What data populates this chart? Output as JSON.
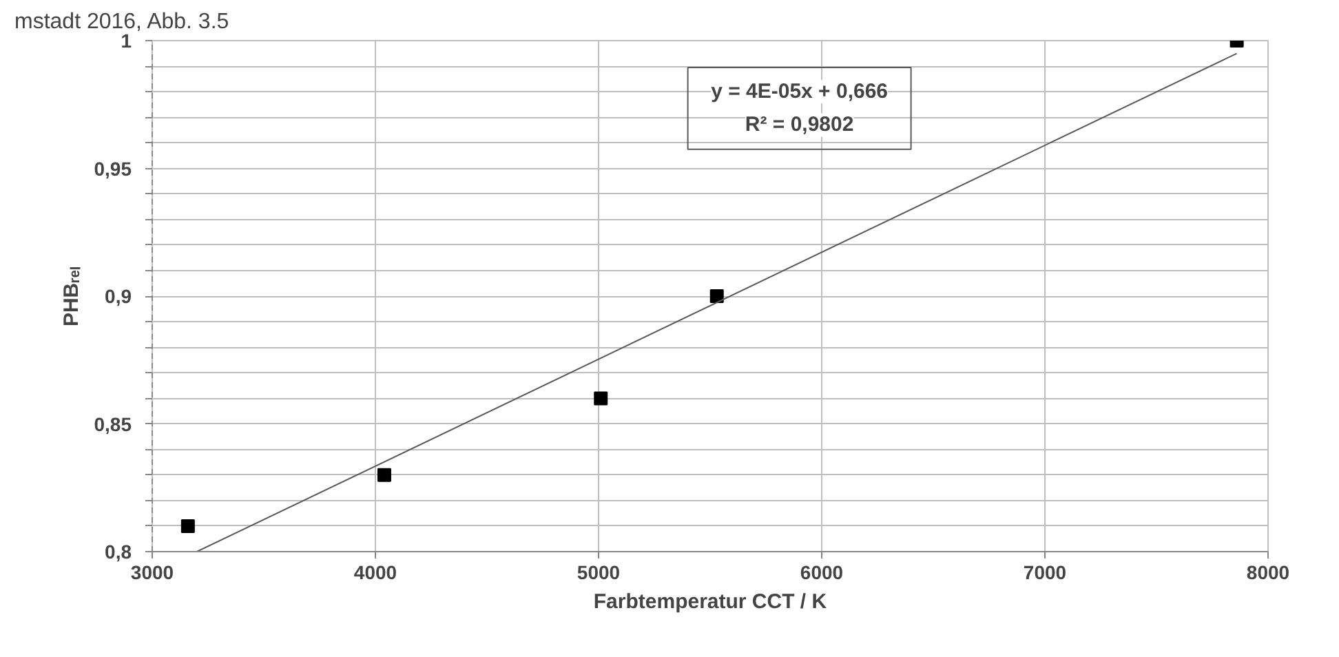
{
  "chart_data": {
    "type": "scatter",
    "xlabel": "Farbtemperatur CCT / K",
    "ylabel": "PHBᵣₑₗ",
    "annotations": [
      "mstadt 2016, Abb. 3.5",
      "y = 4E-05x + 0,666",
      "R² = 0,9802"
    ],
    "series": [
      {
        "marker": "square",
        "color": "#000000",
        "x": [
          3160,
          4040,
          5010,
          5530,
          7860
        ],
        "values": [
          0.81,
          0.83,
          0.86,
          0.9,
          1.0
        ]
      },
      {
        "type": "line",
        "marker": "none",
        "line_style": "solid",
        "color": "#595959",
        "x": [
          3200,
          7860
        ],
        "values": [
          0.8,
          0.995
        ]
      }
    ],
    "xlim": [
      3000,
      8000
    ],
    "xticks": [
      3000,
      4000,
      5000,
      6000,
      7000,
      8000
    ],
    "ylim": [
      0.8,
      1.0
    ],
    "yticks": [
      {
        "value": 0.8,
        "label": "0,8"
      },
      {
        "value": 0.81,
        "label": null
      },
      {
        "value": 0.82,
        "label": null
      },
      {
        "value": 0.83,
        "label": null
      },
      {
        "value": 0.84,
        "label": null
      },
      {
        "value": 0.85,
        "label": "0,85"
      },
      {
        "value": 0.86,
        "label": null
      },
      {
        "value": 0.87,
        "label": null
      },
      {
        "value": 0.88,
        "label": null
      },
      {
        "value": 0.89,
        "label": null
      },
      {
        "value": 0.9,
        "label": "0,9"
      },
      {
        "value": 0.91,
        "label": null
      },
      {
        "value": 0.92,
        "label": null
      },
      {
        "value": 0.93,
        "label": null
      },
      {
        "value": 0.94,
        "label": null
      },
      {
        "value": 0.95,
        "label": "0,95"
      },
      {
        "value": 0.96,
        "label": null
      },
      {
        "value": 0.97,
        "label": null
      },
      {
        "value": 0.98,
        "label": null
      },
      {
        "value": 0.99,
        "label": null
      },
      {
        "value": 1.0,
        "label": "1"
      }
    ],
    "grid": true
  }
}
